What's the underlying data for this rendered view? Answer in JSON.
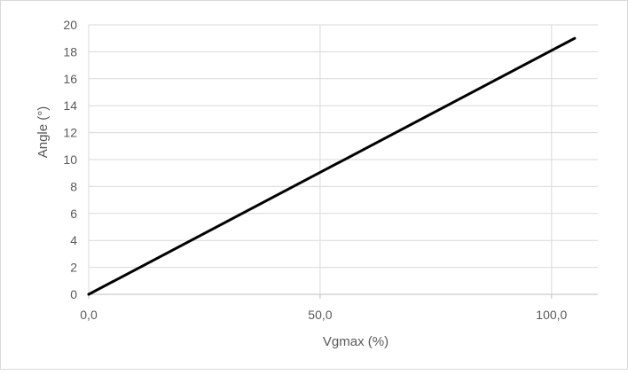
{
  "chart_data": {
    "type": "line",
    "title": "",
    "xlabel": "Vgmax (%)",
    "ylabel": "Angle (°)",
    "xlim": [
      0,
      110
    ],
    "ylim": [
      0,
      20
    ],
    "x_ticks": [
      0,
      50,
      100
    ],
    "x_tick_labels": [
      "0,0",
      "50,0",
      "100,0"
    ],
    "y_ticks": [
      0,
      2,
      4,
      6,
      8,
      10,
      12,
      14,
      16,
      18,
      20
    ],
    "y_tick_labels": [
      "0",
      "2",
      "4",
      "6",
      "8",
      "10",
      "12",
      "14",
      "16",
      "18",
      "20"
    ],
    "grid": {
      "horizontal": true,
      "vertical": true
    },
    "legend": "none",
    "series": [
      {
        "x": [
          0,
          105
        ],
        "y": [
          0,
          19
        ],
        "color": "#000000"
      }
    ]
  }
}
